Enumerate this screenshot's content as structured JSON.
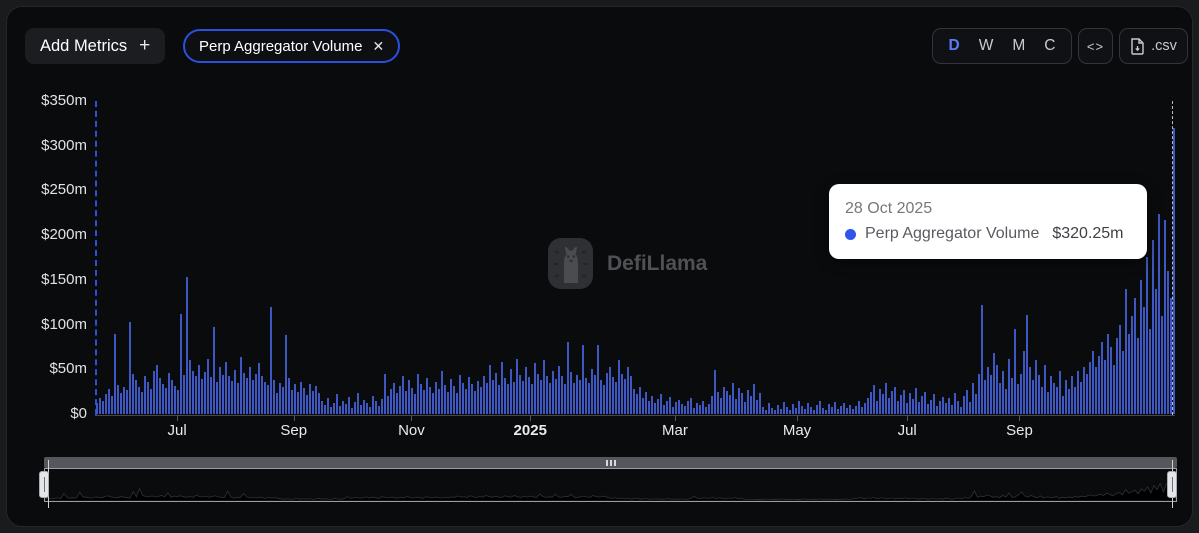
{
  "header": {
    "add_metrics_label": "Add Metrics",
    "add_metrics_plus": "+",
    "metric_pill": {
      "label": "Perp Aggregator Volume",
      "close": "✕"
    },
    "interval_buttons": [
      "D",
      "W",
      "M",
      "C"
    ],
    "active_interval": "D",
    "embed_label": "<>",
    "csv_label": ".csv"
  },
  "watermark": {
    "text": "DefiLlama"
  },
  "tooltip": {
    "date": "28 Oct 2025",
    "series": "Perp Aggregator Volume",
    "value": "$320.25m"
  },
  "colors": {
    "bar": "#3e57c2",
    "accent_blue": "#2b50e0",
    "tooltip_dot": "#2f54eb",
    "panel_bg": "#0a0b0d"
  },
  "chart_data": {
    "type": "bar",
    "title": "Perp Aggregator Volume (daily)",
    "unit": "$m",
    "ylim": [
      0,
      350
    ],
    "grid": false,
    "y_ticks": [
      {
        "label": "$0",
        "value": 0
      },
      {
        "label": "$50m",
        "value": 50
      },
      {
        "label": "$100m",
        "value": 100
      },
      {
        "label": "$150m",
        "value": 150
      },
      {
        "label": "$200m",
        "value": 200
      },
      {
        "label": "$250m",
        "value": 250
      },
      {
        "label": "$300m",
        "value": 300
      },
      {
        "label": "$350m",
        "value": 350
      }
    ],
    "x_ticks": [
      {
        "label": "Jul",
        "f": 0.076,
        "bold": false
      },
      {
        "label": "Sep",
        "f": 0.184,
        "bold": false
      },
      {
        "label": "Nov",
        "f": 0.293,
        "bold": false
      },
      {
        "label": "2025",
        "f": 0.403,
        "bold": true
      },
      {
        "label": "Mar",
        "f": 0.537,
        "bold": false
      },
      {
        "label": "May",
        "f": 0.65,
        "bold": false
      },
      {
        "label": "Jul",
        "f": 0.752,
        "bold": false
      },
      {
        "label": "Sep",
        "f": 0.856,
        "bold": false
      }
    ],
    "highlighted_point": {
      "date": "28 Oct 2025",
      "value_m": 320.25
    },
    "values": [
      12,
      18,
      15,
      22,
      28,
      20,
      89,
      32,
      24,
      30,
      27,
      103,
      45,
      38,
      30,
      25,
      42,
      36,
      28,
      48,
      55,
      40,
      34,
      29,
      46,
      38,
      31,
      27,
      112,
      44,
      153,
      60,
      48,
      42,
      55,
      39,
      47,
      62,
      41,
      97,
      36,
      52,
      44,
      58,
      43,
      37,
      49,
      35,
      64,
      46,
      40,
      53,
      38,
      45,
      57,
      42,
      36,
      32,
      120,
      38,
      24,
      35,
      30,
      88,
      40,
      27,
      33,
      25,
      36,
      29,
      21,
      34,
      26,
      31,
      23,
      14,
      10,
      18,
      8,
      12,
      22,
      9,
      15,
      11,
      19,
      7,
      13,
      24,
      10,
      16,
      12,
      8,
      20,
      14,
      9,
      17,
      45,
      20,
      28,
      35,
      24,
      31,
      42,
      26,
      38,
      29,
      22,
      45,
      33,
      27,
      40,
      30,
      24,
      36,
      28,
      48,
      32,
      25,
      39,
      31,
      23,
      44,
      35,
      28,
      41,
      33,
      26,
      37,
      30,
      42,
      35,
      55,
      38,
      46,
      32,
      58,
      40,
      34,
      50,
      36,
      62,
      44,
      37,
      52,
      41,
      33,
      57,
      45,
      38,
      60,
      42,
      35,
      48,
      39,
      54,
      43,
      33,
      80,
      47,
      35,
      44,
      38,
      77,
      40,
      35,
      50,
      44,
      77,
      38,
      32,
      46,
      53,
      41,
      36,
      60,
      45,
      39,
      52,
      43,
      28,
      22,
      30,
      18,
      25,
      15,
      20,
      12,
      17,
      22,
      10,
      15,
      19,
      8,
      13,
      16,
      11,
      9,
      14,
      18,
      7,
      12,
      10,
      15,
      8,
      11,
      20,
      49,
      25,
      18,
      30,
      26,
      21,
      35,
      17,
      29,
      23,
      13,
      27,
      20,
      33,
      16,
      24,
      8,
      5,
      12,
      7,
      4,
      10,
      6,
      13,
      8,
      5,
      11,
      7,
      15,
      9,
      6,
      12,
      8,
      4,
      10,
      14,
      7,
      5,
      11,
      8,
      13,
      6,
      9,
      12,
      7,
      10,
      6,
      9,
      14,
      8,
      12,
      18,
      25,
      32,
      15,
      28,
      22,
      35,
      18,
      26,
      30,
      14,
      21,
      27,
      12,
      24,
      17,
      29,
      13,
      20,
      25,
      11,
      16,
      22,
      9,
      14,
      19,
      12,
      18,
      10,
      24,
      15,
      8,
      20,
      27,
      13,
      35,
      22,
      45,
      122,
      38,
      52,
      44,
      68,
      55,
      35,
      48,
      28,
      62,
      40,
      95,
      33,
      45,
      70,
      111,
      52,
      38,
      60,
      44,
      30,
      55,
      25,
      42,
      35,
      30,
      48,
      20,
      38,
      28,
      42,
      30,
      48,
      36,
      52,
      45,
      58,
      70,
      52,
      65,
      80,
      60,
      90,
      75,
      55,
      85,
      100,
      70,
      140,
      90,
      110,
      130,
      85,
      150,
      120,
      175,
      95,
      195,
      140,
      224,
      110,
      217,
      160,
      130,
      320
    ]
  }
}
